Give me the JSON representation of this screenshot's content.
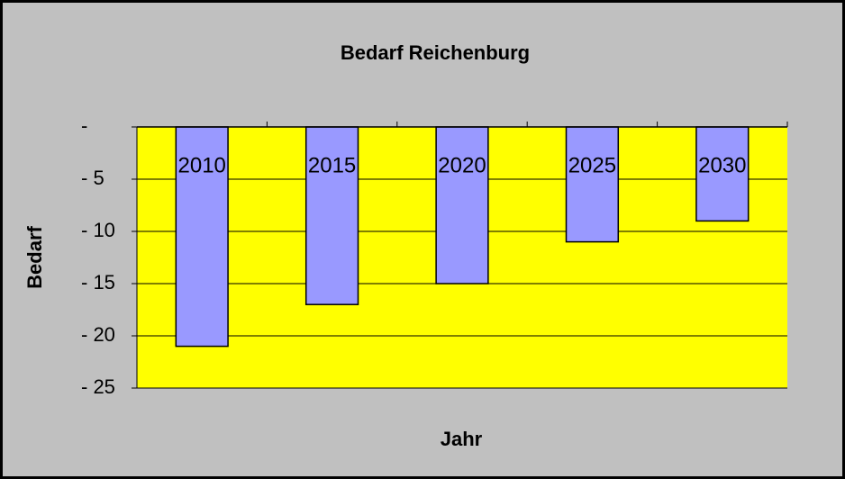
{
  "chart_data": {
    "type": "bar",
    "title": "Bedarf Reichenburg",
    "x_label": "Jahr",
    "y_label": "Bedarf",
    "categories": [
      "2010",
      "2015",
      "2020",
      "2025",
      "2030"
    ],
    "values": [
      -21,
      -17,
      -15,
      -11,
      -9
    ],
    "color": "#9999ff",
    "plot_background": "#ffff00",
    "ylim": [
      -25,
      0
    ],
    "yticks": [
      {
        "value": 0,
        "label": "-"
      },
      {
        "value": -5,
        "label": "- 5"
      },
      {
        "value": -10,
        "label": "- 10"
      },
      {
        "value": -15,
        "label": "- 15"
      },
      {
        "value": -20,
        "label": "- 20"
      },
      {
        "value": -25,
        "label": "- 25"
      }
    ],
    "grid": true
  }
}
